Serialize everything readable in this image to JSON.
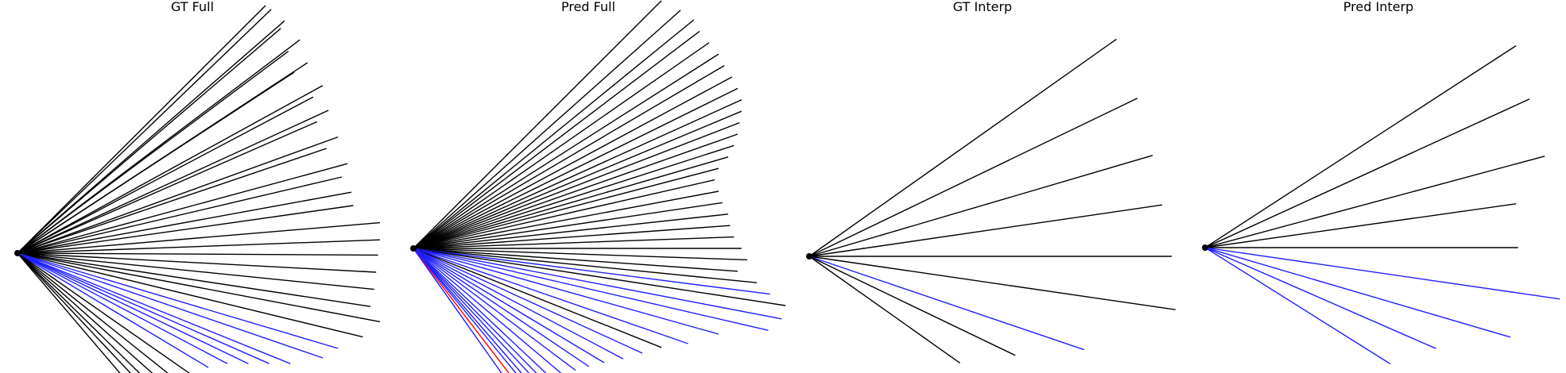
{
  "colors": {
    "black": "#000000",
    "blue": "#1f1fff",
    "red": "#ff0000"
  },
  "panels": [
    {
      "title": "GT Full",
      "origin": [
        0,
        0
      ],
      "rays": [
        {
          "endpoint": [
            1.3,
            -1.3
          ],
          "color": "black"
        },
        {
          "endpoint": [
            1.33,
            -1.28
          ],
          "color": "black"
        },
        {
          "endpoint": [
            1.4,
            -1.22
          ],
          "color": "black"
        },
        {
          "endpoint": [
            1.38,
            -1.18
          ],
          "color": "black"
        },
        {
          "endpoint": [
            1.48,
            -1.12
          ],
          "color": "black"
        },
        {
          "endpoint": [
            1.42,
            -1.06
          ],
          "color": "black"
        },
        {
          "endpoint": [
            1.52,
            -1.0
          ],
          "color": "black"
        },
        {
          "endpoint": [
            1.45,
            -0.95
          ],
          "color": "black"
        },
        {
          "endpoint": [
            1.6,
            -0.88
          ],
          "color": "black"
        },
        {
          "endpoint": [
            1.55,
            -0.82
          ],
          "color": "black"
        },
        {
          "endpoint": [
            1.63,
            -0.75
          ],
          "color": "black"
        },
        {
          "endpoint": [
            1.57,
            -0.69
          ],
          "color": "black"
        },
        {
          "endpoint": [
            1.68,
            -0.61
          ],
          "color": "black"
        },
        {
          "endpoint": [
            1.62,
            -0.55
          ],
          "color": "black"
        },
        {
          "endpoint": [
            1.73,
            -0.47
          ],
          "color": "black"
        },
        {
          "endpoint": [
            1.7,
            -0.4
          ],
          "color": "black"
        },
        {
          "endpoint": [
            1.75,
            -0.32
          ],
          "color": "black"
        },
        {
          "endpoint": [
            1.76,
            -0.25
          ],
          "color": "black"
        },
        {
          "endpoint": [
            1.9,
            -0.16
          ],
          "color": "black"
        },
        {
          "endpoint": [
            1.9,
            -0.07
          ],
          "color": "black"
        },
        {
          "endpoint": [
            1.89,
            0.01
          ],
          "color": "black"
        },
        {
          "endpoint": [
            1.88,
            0.1
          ],
          "color": "black"
        },
        {
          "endpoint": [
            1.87,
            0.19
          ],
          "color": "black"
        },
        {
          "endpoint": [
            1.85,
            0.28
          ],
          "color": "black"
        },
        {
          "endpoint": [
            1.9,
            0.36
          ],
          "color": "black"
        },
        {
          "endpoint": [
            1.81,
            0.44
          ],
          "color": "black"
        },
        {
          "endpoint": [
            1.68,
            0.5
          ],
          "color": "blue"
        },
        {
          "endpoint": [
            1.6,
            0.55
          ],
          "color": "blue"
        },
        {
          "endpoint": [
            1.43,
            0.58
          ],
          "color": "blue"
        },
        {
          "endpoint": [
            1.32,
            0.58
          ],
          "color": "blue"
        },
        {
          "endpoint": [
            1.21,
            0.58
          ],
          "color": "blue"
        },
        {
          "endpoint": [
            1.1,
            0.58
          ],
          "color": "blue"
        },
        {
          "endpoint": [
            1.0,
            0.6
          ],
          "color": "blue"
        },
        {
          "endpoint": [
            0.9,
            0.63
          ],
          "color": "black"
        },
        {
          "endpoint": [
            0.8,
            0.64
          ],
          "color": "black"
        },
        {
          "endpoint": [
            0.74,
            0.66
          ],
          "color": "black"
        },
        {
          "endpoint": [
            0.67,
            0.66
          ],
          "color": "black"
        },
        {
          "endpoint": [
            0.63,
            0.67
          ],
          "color": "black"
        },
        {
          "endpoint": [
            0.58,
            0.68
          ],
          "color": "black"
        }
      ]
    },
    {
      "title": "Pred Full",
      "origin": [
        0,
        0
      ],
      "rays": [
        {
          "endpoint": [
            1.3,
            -1.3
          ],
          "color": "black"
        },
        {
          "endpoint": [
            1.4,
            -1.25
          ],
          "color": "black"
        },
        {
          "endpoint": [
            1.47,
            -1.2
          ],
          "color": "black"
        },
        {
          "endpoint": [
            1.5,
            -1.14
          ],
          "color": "black"
        },
        {
          "endpoint": [
            1.55,
            -1.08
          ],
          "color": "black"
        },
        {
          "endpoint": [
            1.6,
            -1.02
          ],
          "color": "black"
        },
        {
          "endpoint": [
            1.63,
            -0.96
          ],
          "color": "black"
        },
        {
          "endpoint": [
            1.67,
            -0.9
          ],
          "color": "black"
        },
        {
          "endpoint": [
            1.7,
            -0.84
          ],
          "color": "black"
        },
        {
          "endpoint": [
            1.72,
            -0.78
          ],
          "color": "black"
        },
        {
          "endpoint": [
            1.72,
            -0.72
          ],
          "color": "black"
        },
        {
          "endpoint": [
            1.71,
            -0.66
          ],
          "color": "black"
        },
        {
          "endpoint": [
            1.7,
            -0.6
          ],
          "color": "black"
        },
        {
          "endpoint": [
            1.68,
            -0.54
          ],
          "color": "black"
        },
        {
          "endpoint": [
            1.65,
            -0.48
          ],
          "color": "black"
        },
        {
          "endpoint": [
            1.6,
            -0.42
          ],
          "color": "black"
        },
        {
          "endpoint": [
            1.58,
            -0.36
          ],
          "color": "black"
        },
        {
          "endpoint": [
            1.6,
            -0.3
          ],
          "color": "black"
        },
        {
          "endpoint": [
            1.62,
            -0.24
          ],
          "color": "black"
        },
        {
          "endpoint": [
            1.65,
            -0.18
          ],
          "color": "black"
        },
        {
          "endpoint": [
            1.66,
            -0.12
          ],
          "color": "black"
        },
        {
          "endpoint": [
            1.68,
            -0.06
          ],
          "color": "black"
        },
        {
          "endpoint": [
            1.72,
            0.0
          ],
          "color": "black"
        },
        {
          "endpoint": [
            1.75,
            0.06
          ],
          "color": "black"
        },
        {
          "endpoint": [
            1.7,
            0.12
          ],
          "color": "black"
        },
        {
          "endpoint": [
            1.8,
            0.18
          ],
          "color": "black"
        },
        {
          "endpoint": [
            1.87,
            0.24
          ],
          "color": "blue"
        },
        {
          "endpoint": [
            1.95,
            0.3
          ],
          "color": "black"
        },
        {
          "endpoint": [
            1.93,
            0.37
          ],
          "color": "blue"
        },
        {
          "endpoint": [
            1.86,
            0.43
          ],
          "color": "blue"
        },
        {
          "endpoint": [
            1.6,
            0.45
          ],
          "color": "blue"
        },
        {
          "endpoint": [
            1.44,
            0.5
          ],
          "color": "blue"
        },
        {
          "endpoint": [
            1.3,
            0.52
          ],
          "color": "black"
        },
        {
          "endpoint": [
            1.2,
            0.55
          ],
          "color": "blue"
        },
        {
          "endpoint": [
            1.1,
            0.58
          ],
          "color": "blue"
        },
        {
          "endpoint": [
            1.0,
            0.6
          ],
          "color": "blue"
        },
        {
          "endpoint": [
            0.92,
            0.62
          ],
          "color": "blue"
        },
        {
          "endpoint": [
            0.85,
            0.64
          ],
          "color": "blue"
        },
        {
          "endpoint": [
            0.78,
            0.66
          ],
          "color": "blue"
        },
        {
          "endpoint": [
            0.7,
            0.66
          ],
          "color": "blue"
        },
        {
          "endpoint": [
            0.66,
            0.67
          ],
          "color": "blue"
        },
        {
          "endpoint": [
            0.62,
            0.67
          ],
          "color": "blue"
        },
        {
          "endpoint": [
            0.58,
            0.67
          ],
          "color": "blue"
        },
        {
          "endpoint": [
            0.55,
            0.67
          ],
          "color": "blue"
        },
        {
          "endpoint": [
            0.52,
            0.68
          ],
          "color": "red"
        },
        {
          "endpoint": [
            0.48,
            0.68
          ],
          "color": "blue"
        }
      ]
    },
    {
      "title": "GT Interp",
      "origin": [
        0,
        0
      ],
      "rays": [
        {
          "endpoint": [
            1.61,
            -1.14
          ],
          "color": "black"
        },
        {
          "endpoint": [
            1.72,
            -0.83
          ],
          "color": "black"
        },
        {
          "endpoint": [
            1.8,
            -0.53
          ],
          "color": "black"
        },
        {
          "endpoint": [
            1.85,
            -0.27
          ],
          "color": "black"
        },
        {
          "endpoint": [
            1.9,
            0.0
          ],
          "color": "black"
        },
        {
          "endpoint": [
            1.92,
            0.28
          ],
          "color": "black"
        },
        {
          "endpoint": [
            1.44,
            0.49
          ],
          "color": "blue"
        },
        {
          "endpoint": [
            1.08,
            0.52
          ],
          "color": "black"
        },
        {
          "endpoint": [
            0.79,
            0.56
          ],
          "color": "black"
        }
      ]
    },
    {
      "title": "Pred Interp",
      "origin": [
        0,
        0
      ],
      "rays": [
        {
          "endpoint": [
            1.63,
            -1.06
          ],
          "color": "black"
        },
        {
          "endpoint": [
            1.7,
            -0.78
          ],
          "color": "black"
        },
        {
          "endpoint": [
            1.78,
            -0.48
          ],
          "color": "black"
        },
        {
          "endpoint": [
            1.63,
            -0.23
          ],
          "color": "black"
        },
        {
          "endpoint": [
            1.64,
            0.0
          ],
          "color": "black"
        },
        {
          "endpoint": [
            1.86,
            0.27
          ],
          "color": "blue"
        },
        {
          "endpoint": [
            1.6,
            0.47
          ],
          "color": "blue"
        },
        {
          "endpoint": [
            1.21,
            0.53
          ],
          "color": "blue"
        },
        {
          "endpoint": [
            0.97,
            0.61
          ],
          "color": "blue"
        }
      ]
    }
  ]
}
